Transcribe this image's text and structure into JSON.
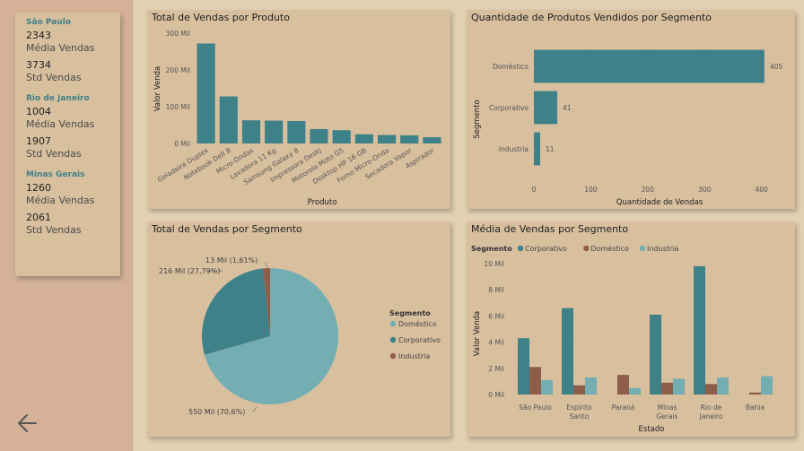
{
  "sidebar": {
    "groups": [
      {
        "city": "São Paulo",
        "mean_value": "2343",
        "mean_label": "Média Vendas",
        "std_value": "3734",
        "std_label": "Std Vendas"
      },
      {
        "city": "Rio de Janeiro",
        "mean_value": "1004",
        "mean_label": "Média Vendas",
        "std_value": "1907",
        "std_label": "Std Vendas"
      },
      {
        "city": "Minas Gerais",
        "mean_value": "1260",
        "mean_label": "Média Vendas",
        "std_value": "2061",
        "std_label": "Std Vendas"
      }
    ],
    "back_icon": "arrow-left-icon"
  },
  "colors": {
    "teal": "#3f8189",
    "brown": "#8f5e4a",
    "light_teal": "#73aeb3",
    "panel": "#d8bf9e",
    "sidebar": "#d4b197",
    "background": "#e3d1b3"
  },
  "chart_data": [
    {
      "type": "bar",
      "title": "Total de Vendas por Produto",
      "xlabel": "Produto",
      "ylabel": "Valor Venda",
      "categories": [
        "Geladeira Duplex",
        "Notebook Dell 8",
        "Micro-Ondas",
        "Lavadora 11 Kg",
        "Samsung Galaxy 8",
        "Impressora Deskj",
        "Motorola Moto G5",
        "Desktop HP 16 GB",
        "Forno Micro-Onda",
        "Secadora Vapor",
        "Aspirador"
      ],
      "values": [
        272000,
        128000,
        63000,
        62000,
        61000,
        39000,
        36000,
        25000,
        23000,
        22000,
        17000
      ],
      "ylim": [
        0,
        300000
      ],
      "yticks": [
        0,
        100000,
        200000,
        300000
      ],
      "ytick_labels": [
        "0 Mil",
        "100 Mil",
        "200 Mil",
        "300 Mil"
      ]
    },
    {
      "type": "bar",
      "orientation": "horizontal",
      "title": "Quantidade de Produtos Vendidos por Segmento",
      "xlabel": "Quantidade de Vendas",
      "ylabel": "Segmento",
      "categories": [
        "Doméstico",
        "Corporativo",
        "Industria"
      ],
      "values": [
        405,
        41,
        11
      ],
      "data_labels": [
        "405",
        "41",
        "11"
      ],
      "xlim": [
        0,
        410
      ],
      "xticks": [
        0,
        100,
        200,
        300,
        400
      ],
      "xtick_labels": [
        "0",
        "100",
        "200",
        "300",
        "400"
      ]
    },
    {
      "type": "pie",
      "title": "Total de Vendas por Segmento",
      "legend_title": "Segmento",
      "legend_position": "right",
      "slices": [
        {
          "name": "Doméstico",
          "value": 70.6,
          "label": "550 Mil (70,6%)",
          "color": "#73aeb3"
        },
        {
          "name": "Corporativo",
          "value": 27.79,
          "label": "216 Mil (27,79%)",
          "color": "#3f8189"
        },
        {
          "name": "Industria",
          "value": 1.61,
          "label": "13 Mil (1,61%)",
          "color": "#8f5e4a"
        }
      ]
    },
    {
      "type": "bar",
      "title": "Média de Vendas por Segmento",
      "xlabel": "Estado",
      "ylabel": "Valor Venda",
      "legend_title": "Segmento",
      "legend_position": "top-left",
      "categories": [
        "São Paulo",
        "Espírito Santo",
        "Paraná",
        "Minas Gerais",
        "Rio de Janeiro",
        "Bahia"
      ],
      "category_lines": [
        [
          "São Paulo"
        ],
        [
          "Espírito",
          "Santo"
        ],
        [
          "Paraná"
        ],
        [
          "Minas",
          "Gerais"
        ],
        [
          "Rio de",
          "Janeiro"
        ],
        [
          "Bahia"
        ]
      ],
      "series": [
        {
          "name": "Corporativo",
          "values": [
            4300,
            6600,
            0,
            6100,
            9800,
            0
          ],
          "color": "#3f8189"
        },
        {
          "name": "Doméstico",
          "values": [
            2100,
            700,
            1500,
            900,
            800,
            150
          ],
          "color": "#8f5e4a"
        },
        {
          "name": "Industria",
          "values": [
            1100,
            1300,
            500,
            1200,
            1300,
            1400
          ],
          "color": "#73aeb3"
        }
      ],
      "ylim": [
        0,
        10000
      ],
      "yticks": [
        0,
        2000,
        4000,
        6000,
        8000,
        10000
      ],
      "ytick_labels": [
        "0 Mil",
        "2 Mil",
        "4 Mil",
        "6 Mil",
        "8 Mil",
        "10 Mil"
      ]
    }
  ]
}
